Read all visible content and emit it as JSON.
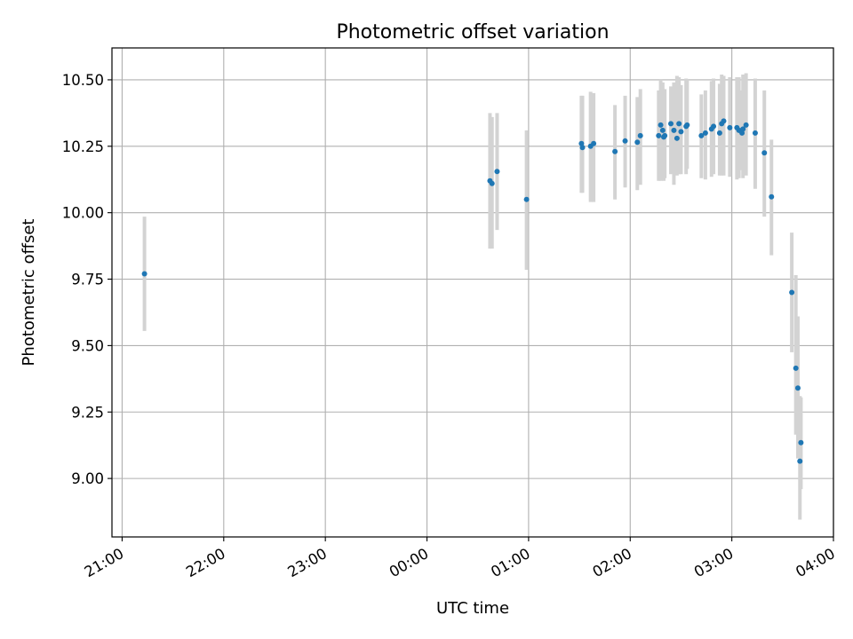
{
  "chart_data": {
    "type": "scatter",
    "title": "Photometric offset variation",
    "xlabel": "UTC time",
    "ylabel": "Photometric offset",
    "x_tick_labels": [
      "21:00",
      "22:00",
      "23:00",
      "00:00",
      "01:00",
      "02:00",
      "03:00",
      "04:00"
    ],
    "y_tick_labels": [
      "9.00",
      "9.25",
      "9.50",
      "9.75",
      "10.00",
      "10.25",
      "10.50"
    ],
    "x_range_hours": [
      20.9,
      28.0
    ],
    "ylim": [
      8.78,
      10.62
    ],
    "grid": true,
    "series": [
      {
        "marker_color": "#1f77b4",
        "errorbar_color": "#d3d3d3",
        "x_hours": [
          21.22,
          24.62,
          24.64,
          24.69,
          24.98,
          25.52,
          25.53,
          25.61,
          25.64,
          25.85,
          25.95,
          26.07,
          26.1,
          26.28,
          26.3,
          26.32,
          26.33,
          26.34,
          26.4,
          26.43,
          26.46,
          26.48,
          26.5,
          26.55,
          26.56,
          26.7,
          26.74,
          26.8,
          26.82,
          26.88,
          26.9,
          26.92,
          26.98,
          27.05,
          27.07,
          27.1,
          27.11,
          27.14,
          27.23,
          27.32,
          27.39,
          27.59,
          27.63,
          27.65,
          27.67,
          27.68
        ],
        "y": [
          9.77,
          10.12,
          10.11,
          10.155,
          10.05,
          10.26,
          10.245,
          10.25,
          10.26,
          10.23,
          10.27,
          10.265,
          10.29,
          10.29,
          10.33,
          10.31,
          10.285,
          10.29,
          10.335,
          10.31,
          10.28,
          10.335,
          10.305,
          10.325,
          10.33,
          10.29,
          10.3,
          10.315,
          10.325,
          10.3,
          10.335,
          10.345,
          10.32,
          10.32,
          10.31,
          10.3,
          10.315,
          10.33,
          10.3,
          10.225,
          10.06,
          9.7,
          9.415,
          9.34,
          9.065,
          9.135
        ],
        "err_low": [
          9.555,
          9.865,
          9.865,
          9.935,
          9.785,
          10.075,
          10.075,
          10.04,
          10.04,
          10.05,
          10.095,
          10.085,
          10.105,
          10.12,
          10.12,
          10.13,
          10.12,
          10.13,
          10.145,
          10.105,
          10.14,
          10.145,
          10.145,
          10.145,
          10.165,
          10.13,
          10.125,
          10.135,
          10.145,
          10.14,
          10.14,
          10.14,
          10.135,
          10.125,
          10.13,
          10.16,
          10.13,
          10.14,
          10.09,
          9.985,
          9.84,
          9.475,
          9.165,
          9.075,
          8.845,
          8.96
        ],
        "err_high": [
          9.985,
          10.375,
          10.36,
          10.375,
          10.31,
          10.44,
          10.44,
          10.455,
          10.45,
          10.405,
          10.44,
          10.435,
          10.465,
          10.46,
          10.5,
          10.49,
          10.455,
          10.465,
          10.475,
          10.49,
          10.515,
          10.51,
          10.48,
          10.505,
          10.5,
          10.445,
          10.46,
          10.495,
          10.505,
          10.485,
          10.52,
          10.515,
          10.51,
          10.51,
          10.51,
          10.46,
          10.52,
          10.525,
          10.505,
          10.46,
          10.275,
          9.925,
          9.765,
          9.61,
          9.31,
          9.305
        ]
      }
    ]
  }
}
